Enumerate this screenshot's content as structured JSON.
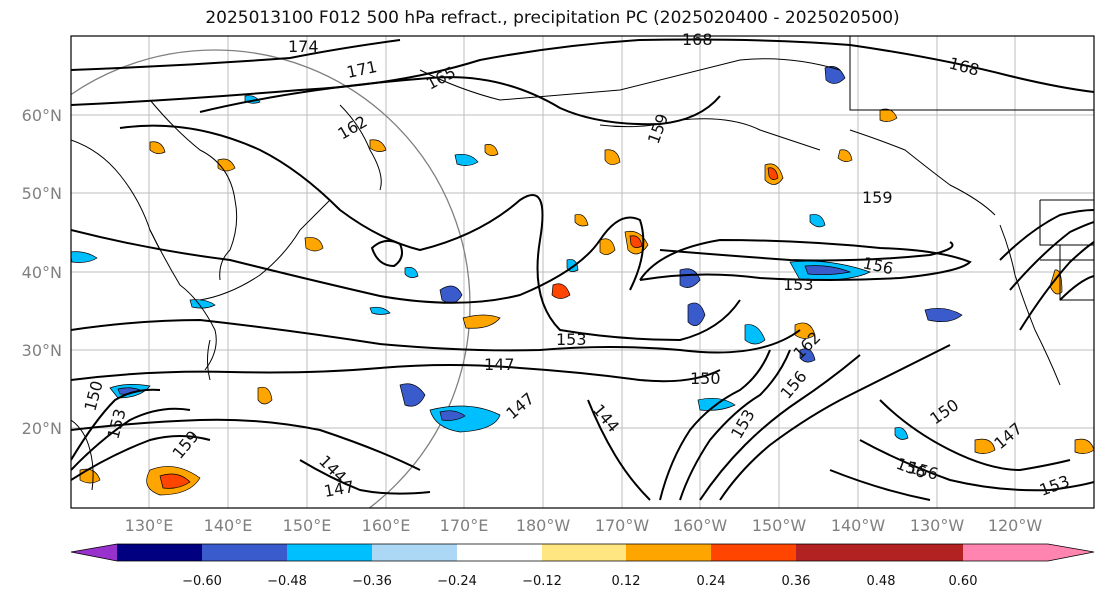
{
  "title": "2025013100 F012 500 hPa refract., precipitation PC (2025020400 - 2025020500)",
  "lat_labels": [
    "60°N",
    "50°N",
    "40°N",
    "30°N",
    "20°N"
  ],
  "lon_labels": [
    "130°E",
    "140°E",
    "150°E",
    "160°E",
    "170°E",
    "180°W",
    "170°W",
    "160°W",
    "150°W",
    "140°W",
    "130°W",
    "120°W"
  ],
  "contour_labels": [
    "174",
    "171",
    "165",
    "168",
    "168",
    "162",
    "159",
    "159",
    "156",
    "153",
    "153",
    "147",
    "150",
    "162",
    "147",
    "144",
    "150",
    "147",
    "153",
    "159",
    "156",
    "150",
    "153",
    "156",
    "147",
    "144",
    "153",
    "156"
  ],
  "colorbar": {
    "ticks": [
      "−0.60",
      "−0.48",
      "−0.36",
      "−0.24",
      "−0.12",
      "0.12",
      "0.24",
      "0.36",
      "0.48",
      "0.60"
    ],
    "colors": [
      "#9932cc",
      "#000080",
      "#3a5bcc",
      "#00bfff",
      "#add8f5",
      "#ffffff",
      "#ffe680",
      "#ffa500",
      "#ff4500",
      "#b22222",
      "#ff85b0"
    ]
  }
}
